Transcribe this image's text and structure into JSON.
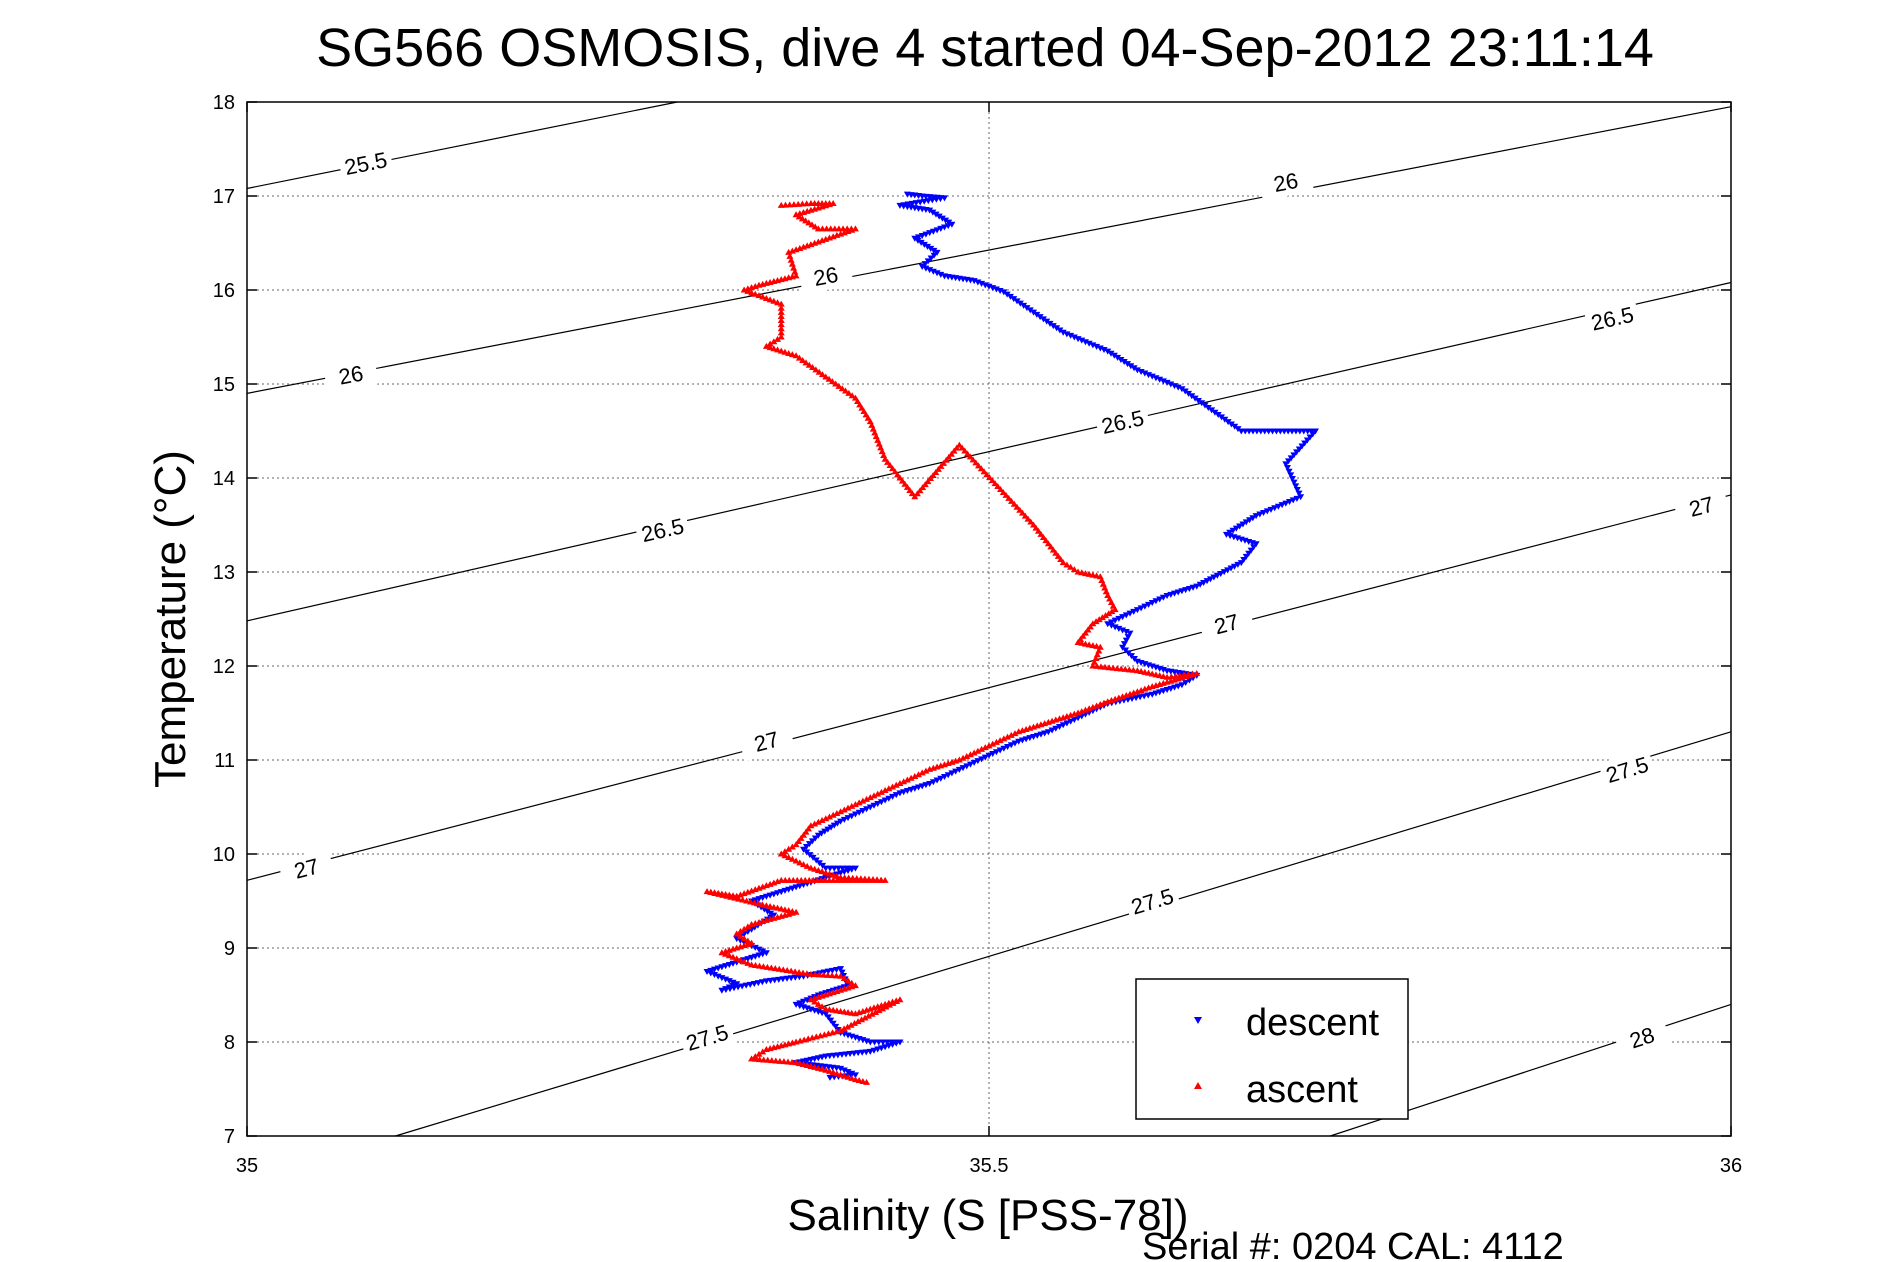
{
  "chart_data": {
    "type": "scatter",
    "title": "SG566 OSMOSIS, dive 4 started 04-Sep-2012 23:11:14",
    "xlabel": "Salinity (S [PSS-78])",
    "ylabel": "Temperature (°C)",
    "xlim": [
      35,
      36
    ],
    "ylim": [
      7,
      18
    ],
    "xticks": [
      35,
      35.5,
      36
    ],
    "yticks": [
      7,
      8,
      9,
      10,
      11,
      12,
      13,
      14,
      15,
      16,
      17,
      18
    ],
    "xtick_labels": [
      "35",
      "35.5",
      "36"
    ],
    "ytick_labels": [
      "7",
      "8",
      "9",
      "10",
      "11",
      "12",
      "13",
      "14",
      "15",
      "16",
      "17",
      "18"
    ],
    "grid": true,
    "legend_position": "bottom-right",
    "footer": "Serial #: 0204  CAL: 4112",
    "density_contours": [
      {
        "label": "25.5",
        "points": [
          [
            35,
            17.08
          ],
          [
            35.29,
            18
          ]
        ],
        "label_positions": [
          [
            35.08,
            17.35
          ]
        ]
      },
      {
        "label": "26",
        "points": [
          [
            35,
            14.9
          ],
          [
            36,
            17.95
          ]
        ],
        "label_positions": [
          [
            35.07,
            15.1
          ],
          [
            35.39,
            16.15
          ],
          [
            35.7,
            17.15
          ]
        ]
      },
      {
        "label": "26.5",
        "points": [
          [
            35,
            12.48
          ],
          [
            36,
            16.08
          ]
        ],
        "label_positions": [
          [
            35.28,
            13.45
          ],
          [
            35.59,
            14.6
          ],
          [
            35.92,
            15.7
          ]
        ]
      },
      {
        "label": "27",
        "points": [
          [
            35,
            9.72
          ],
          [
            36,
            13.82
          ]
        ],
        "label_positions": [
          [
            35.04,
            9.85
          ],
          [
            35.35,
            11.2
          ],
          [
            35.66,
            12.45
          ],
          [
            35.98,
            13.7
          ]
        ]
      },
      {
        "label": "27.5",
        "points": [
          [
            35.1,
            7
          ],
          [
            36,
            11.3
          ]
        ],
        "label_positions": [
          [
            35.31,
            8.05
          ],
          [
            35.61,
            9.5
          ],
          [
            35.93,
            10.9
          ]
        ]
      },
      {
        "label": "28",
        "points": [
          [
            35.73,
            7
          ],
          [
            36,
            8.4
          ]
        ],
        "label_positions": [
          [
            35.94,
            8.05
          ]
        ]
      }
    ],
    "series": [
      {
        "name": "descent",
        "color": "#0000ff",
        "marker": "triangle-down",
        "points": [
          [
            35.445,
            17.02
          ],
          [
            35.455,
            17.0
          ],
          [
            35.47,
            16.98
          ],
          [
            35.44,
            16.9
          ],
          [
            35.46,
            16.85
          ],
          [
            35.475,
            16.7
          ],
          [
            35.45,
            16.55
          ],
          [
            35.465,
            16.4
          ],
          [
            35.455,
            16.25
          ],
          [
            35.47,
            16.15
          ],
          [
            35.49,
            16.1
          ],
          [
            35.51,
            15.98
          ],
          [
            35.55,
            15.55
          ],
          [
            35.58,
            15.35
          ],
          [
            35.6,
            15.15
          ],
          [
            35.63,
            14.95
          ],
          [
            35.67,
            14.5
          ],
          [
            35.72,
            14.5
          ],
          [
            35.7,
            14.15
          ],
          [
            35.71,
            13.8
          ],
          [
            35.68,
            13.6
          ],
          [
            35.66,
            13.4
          ],
          [
            35.68,
            13.3
          ],
          [
            35.67,
            13.1
          ],
          [
            35.64,
            12.85
          ],
          [
            35.62,
            12.75
          ],
          [
            35.6,
            12.6
          ],
          [
            35.58,
            12.45
          ],
          [
            35.595,
            12.35
          ],
          [
            35.59,
            12.2
          ],
          [
            35.6,
            12.05
          ],
          [
            35.62,
            11.95
          ],
          [
            35.64,
            11.9
          ],
          [
            35.63,
            11.8
          ],
          [
            35.61,
            11.7
          ],
          [
            35.58,
            11.6
          ],
          [
            35.56,
            11.45
          ],
          [
            35.54,
            11.3
          ],
          [
            35.52,
            11.2
          ],
          [
            35.5,
            11.05
          ],
          [
            35.48,
            10.9
          ],
          [
            35.46,
            10.75
          ],
          [
            35.44,
            10.65
          ],
          [
            35.42,
            10.5
          ],
          [
            35.4,
            10.35
          ],
          [
            35.385,
            10.2
          ],
          [
            35.375,
            10.05
          ],
          [
            35.39,
            9.85
          ],
          [
            35.41,
            9.85
          ],
          [
            35.38,
            9.7
          ],
          [
            35.36,
            9.6
          ],
          [
            35.34,
            9.5
          ],
          [
            35.355,
            9.35
          ],
          [
            35.34,
            9.2
          ],
          [
            35.33,
            9.1
          ],
          [
            35.35,
            8.95
          ],
          [
            35.33,
            8.85
          ],
          [
            35.31,
            8.75
          ],
          [
            35.33,
            8.62
          ],
          [
            35.32,
            8.55
          ],
          [
            35.35,
            8.65
          ],
          [
            35.375,
            8.7
          ],
          [
            35.4,
            8.78
          ],
          [
            35.405,
            8.6
          ],
          [
            35.385,
            8.5
          ],
          [
            35.37,
            8.4
          ],
          [
            35.39,
            8.3
          ],
          [
            35.4,
            8.1
          ],
          [
            35.42,
            8.0
          ],
          [
            35.44,
            8.0
          ],
          [
            35.42,
            7.9
          ],
          [
            35.39,
            7.85
          ],
          [
            35.37,
            7.78
          ],
          [
            35.4,
            7.72
          ],
          [
            35.41,
            7.65
          ],
          [
            35.39,
            7.62
          ]
        ]
      },
      {
        "name": "ascent",
        "color": "#ff0000",
        "marker": "triangle-up",
        "points": [
          [
            35.36,
            16.9
          ],
          [
            35.38,
            16.92
          ],
          [
            35.395,
            16.92
          ],
          [
            35.37,
            16.8
          ],
          [
            35.385,
            16.65
          ],
          [
            35.41,
            16.65
          ],
          [
            35.365,
            16.4
          ],
          [
            35.37,
            16.15
          ],
          [
            35.345,
            16.05
          ],
          [
            35.335,
            16.0
          ],
          [
            35.36,
            15.85
          ],
          [
            35.36,
            15.5
          ],
          [
            35.35,
            15.4
          ],
          [
            35.37,
            15.3
          ],
          [
            35.41,
            14.85
          ],
          [
            35.42,
            14.6
          ],
          [
            35.43,
            14.2
          ],
          [
            35.44,
            14.0
          ],
          [
            35.45,
            13.8
          ],
          [
            35.48,
            14.35
          ],
          [
            35.53,
            13.5
          ],
          [
            35.55,
            13.1
          ],
          [
            35.56,
            13.0
          ],
          [
            35.575,
            12.95
          ],
          [
            35.58,
            12.75
          ],
          [
            35.585,
            12.6
          ],
          [
            35.57,
            12.45
          ],
          [
            35.56,
            12.25
          ],
          [
            35.575,
            12.2
          ],
          [
            35.57,
            12.0
          ],
          [
            35.6,
            11.95
          ],
          [
            35.62,
            11.88
          ],
          [
            35.64,
            11.92
          ],
          [
            35.61,
            11.78
          ],
          [
            35.58,
            11.62
          ],
          [
            35.56,
            11.5
          ],
          [
            35.52,
            11.3
          ],
          [
            35.5,
            11.15
          ],
          [
            35.48,
            11.0
          ],
          [
            35.46,
            10.9
          ],
          [
            35.44,
            10.75
          ],
          [
            35.42,
            10.6
          ],
          [
            35.4,
            10.45
          ],
          [
            35.38,
            10.3
          ],
          [
            35.37,
            10.1
          ],
          [
            35.36,
            10.0
          ],
          [
            35.38,
            9.85
          ],
          [
            35.4,
            9.75
          ],
          [
            35.43,
            9.72
          ],
          [
            35.36,
            9.72
          ],
          [
            35.33,
            9.55
          ],
          [
            35.31,
            9.6
          ],
          [
            35.35,
            9.45
          ],
          [
            35.37,
            9.38
          ],
          [
            35.34,
            9.25
          ],
          [
            35.33,
            9.15
          ],
          [
            35.34,
            9.05
          ],
          [
            35.32,
            8.95
          ],
          [
            35.34,
            8.82
          ],
          [
            35.38,
            8.72
          ],
          [
            35.4,
            8.7
          ],
          [
            35.41,
            8.6
          ],
          [
            35.38,
            8.45
          ],
          [
            35.39,
            8.35
          ],
          [
            35.41,
            8.3
          ],
          [
            35.42,
            8.35
          ],
          [
            35.44,
            8.45
          ],
          [
            35.4,
            8.12
          ],
          [
            35.37,
            8.0
          ],
          [
            35.35,
            7.92
          ],
          [
            35.34,
            7.82
          ],
          [
            35.37,
            7.78
          ],
          [
            35.39,
            7.7
          ],
          [
            35.41,
            7.6
          ],
          [
            35.42,
            7.56
          ]
        ]
      }
    ]
  }
}
